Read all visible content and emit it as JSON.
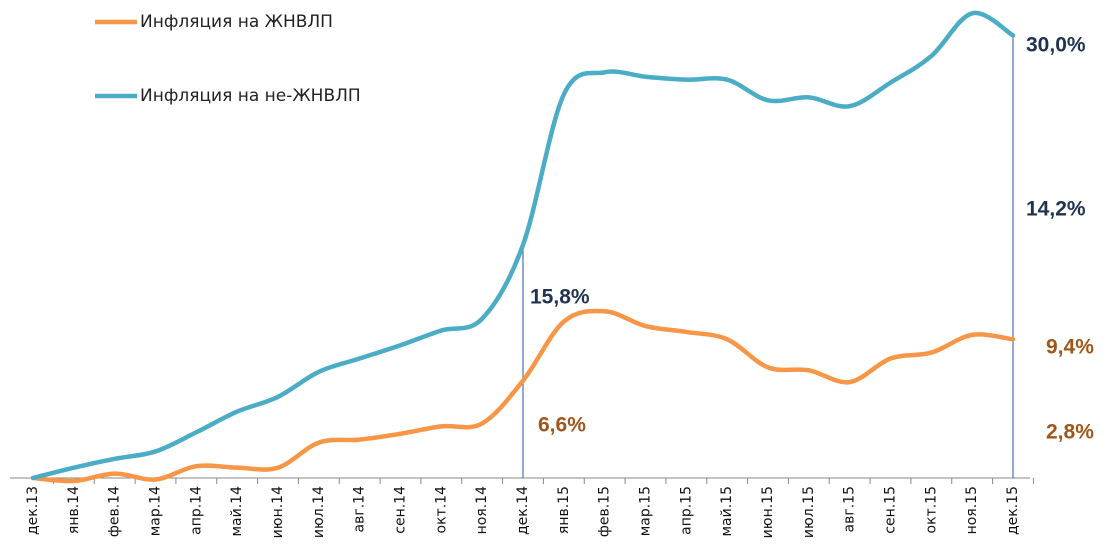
{
  "chart_data": {
    "type": "line",
    "categories": [
      "дек.13",
      "янв.14",
      "фев.14",
      "мар.14",
      "апр.14",
      "май.14",
      "июн.14",
      "июл.14",
      "авг.14",
      "сен.14",
      "окт.14",
      "ноя.14",
      "дек.14",
      "янв.15",
      "фев.15",
      "мар.15",
      "апр.15",
      "май.15",
      "июн.15",
      "июл.15",
      "авг.15",
      "сен.15",
      "окт.15",
      "ноя.15",
      "дек.15"
    ],
    "series": [
      {
        "name": "Инфляция на ЖНВЛП",
        "color": "#f79646",
        "values": [
          0,
          -0.2,
          0.3,
          -0.1,
          0.8,
          0.7,
          0.7,
          2.4,
          2.6,
          3.0,
          3.5,
          3.7,
          6.6,
          10.6,
          11.3,
          10.3,
          9.9,
          9.4,
          7.5,
          7.3,
          6.5,
          8.1,
          8.5,
          9.7,
          9.4
        ]
      },
      {
        "name": "Инфляция на не-ЖНВЛП",
        "color": "#4bacc6",
        "values": [
          0,
          0.7,
          1.3,
          1.8,
          3.1,
          4.5,
          5.5,
          7.2,
          8.1,
          9.0,
          10.0,
          10.8,
          15.8,
          26.0,
          27.5,
          27.2,
          27.0,
          27.0,
          25.6,
          25.8,
          25.2,
          26.8,
          28.6,
          31.5,
          30.0
        ]
      }
    ],
    "annotations": [
      {
        "text": "30,0%",
        "color": "#1f3350"
      },
      {
        "text": "14,2%",
        "color": "#1f3350"
      },
      {
        "text": "15,8%",
        "color": "#1f3350"
      },
      {
        "text": "6,6%",
        "color": "#a0561a"
      },
      {
        "text": "9,4%",
        "color": "#a0561a"
      },
      {
        "text": "2,8%",
        "color": "#a0561a"
      }
    ],
    "ylim": [
      0,
      32.4
    ],
    "legend": "top-left"
  }
}
